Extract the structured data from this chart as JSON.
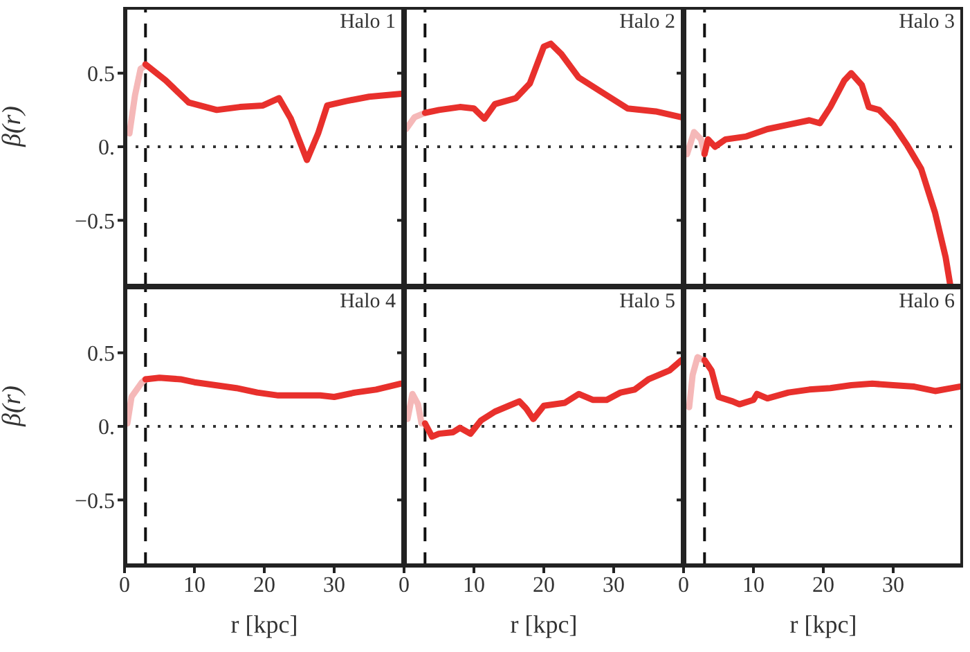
{
  "chart_data": [
    {
      "type": "line",
      "title": "Halo 1",
      "ylabel": "β(r)",
      "xlim": [
        0,
        40
      ],
      "xticks": [
        0,
        10,
        20,
        30
      ],
      "ylim": [
        -0.95,
        0.95
      ],
      "yticks": [
        {
          "value": 0.5,
          "label": "0.5"
        },
        {
          "value": 0,
          "label": "0."
        },
        {
          "value": -0.5,
          "label": "−0.5"
        }
      ],
      "tick_labels": "y",
      "marker": "none",
      "ref_lines": [
        {
          "axis": "x",
          "value": 3,
          "color": "#111111",
          "line_style": "dashed"
        },
        {
          "axis": "y",
          "value": 0,
          "color": "#333333",
          "line_style": "dotted"
        }
      ],
      "series": [
        {
          "color": "#f5b8b8",
          "x": [
            0.7,
            1.5,
            2.3,
            3
          ],
          "values": [
            0.09,
            0.35,
            0.53,
            0.55
          ]
        },
        {
          "color": "#e8302c",
          "x": [
            3,
            5.9,
            9.2,
            13.2,
            16.5,
            19.8,
            22.1,
            23.8,
            26.1,
            27.7,
            29,
            31.7,
            35,
            39.6
          ],
          "values": [
            0.56,
            0.45,
            0.3,
            0.25,
            0.27,
            0.28,
            0.33,
            0.19,
            -0.09,
            0.09,
            0.28,
            0.31,
            0.34,
            0.36
          ]
        }
      ]
    },
    {
      "type": "line",
      "title": "Halo 2",
      "xlim": [
        0,
        40
      ],
      "xticks": [
        0,
        10,
        20,
        30
      ],
      "ylim": [
        -0.95,
        0.95
      ],
      "yticks": [
        0.5,
        0,
        -0.5
      ],
      "tick_labels": false,
      "marker": "none",
      "ref_lines": [
        {
          "axis": "x",
          "value": 3,
          "color": "#111111",
          "line_style": "dashed"
        },
        {
          "axis": "y",
          "value": 0,
          "color": "#333333",
          "line_style": "dotted"
        }
      ],
      "series": [
        {
          "color": "#f5b8b8",
          "x": [
            0.3,
            1.5,
            3
          ],
          "values": [
            0.12,
            0.2,
            0.23
          ]
        },
        {
          "color": "#e8302c",
          "x": [
            3,
            5,
            8,
            10,
            11.5,
            13,
            16,
            18,
            20,
            21,
            22.5,
            25,
            28,
            32,
            36,
            39.7
          ],
          "values": [
            0.23,
            0.25,
            0.27,
            0.26,
            0.19,
            0.29,
            0.33,
            0.43,
            0.68,
            0.7,
            0.63,
            0.47,
            0.38,
            0.26,
            0.24,
            0.2
          ]
        }
      ]
    },
    {
      "type": "line",
      "title": "Halo 3",
      "xlim": [
        0,
        40
      ],
      "xticks": [
        0,
        10,
        20,
        30
      ],
      "ylim": [
        -0.95,
        0.95
      ],
      "yticks": [
        0.5,
        0,
        -0.5
      ],
      "tick_labels": false,
      "marker": "none",
      "ref_lines": [
        {
          "axis": "x",
          "value": 3,
          "color": "#111111",
          "line_style": "dashed"
        },
        {
          "axis": "y",
          "value": 0,
          "color": "#333333",
          "line_style": "dotted"
        }
      ],
      "series": [
        {
          "color": "#f5b8b8",
          "x": [
            0.5,
            1.5,
            2.5,
            3
          ],
          "values": [
            -0.05,
            0.1,
            0.05,
            -0.05
          ]
        },
        {
          "color": "#e8302c",
          "x": [
            3,
            3.5,
            4.5,
            6,
            9,
            12,
            15,
            18,
            19.5,
            21,
            23,
            24,
            25.5,
            26.5,
            28,
            30,
            32,
            34,
            36,
            37.5,
            38.2
          ],
          "values": [
            -0.05,
            0.05,
            0,
            0.05,
            0.07,
            0.12,
            0.15,
            0.18,
            0.16,
            0.27,
            0.45,
            0.5,
            0.42,
            0.27,
            0.25,
            0.15,
            0.01,
            -0.15,
            -0.45,
            -0.75,
            -0.95
          ]
        }
      ]
    },
    {
      "type": "line",
      "title": "Halo 4",
      "xlabel": "r [kpc]",
      "ylabel": "β(r)",
      "xlim": [
        0,
        40
      ],
      "xticks": [
        0,
        10,
        20,
        30
      ],
      "ylim": [
        -0.95,
        0.95
      ],
      "yticks": [
        {
          "value": 0.5,
          "label": "0.5"
        },
        {
          "value": 0,
          "label": "0."
        },
        {
          "value": -0.5,
          "label": "−0.5"
        }
      ],
      "marker": "none",
      "ref_lines": [
        {
          "axis": "x",
          "value": 3,
          "color": "#111111",
          "line_style": "dashed"
        },
        {
          "axis": "y",
          "value": 0,
          "color": "#333333",
          "line_style": "dotted"
        }
      ],
      "series": [
        {
          "color": "#f5b8b8",
          "x": [
            0.4,
            1,
            2.5,
            3
          ],
          "values": [
            0.02,
            0.2,
            0.3,
            0.32
          ]
        },
        {
          "color": "#e8302c",
          "x": [
            3,
            5,
            8,
            10,
            13,
            16,
            19,
            22,
            25,
            28,
            30,
            33,
            36,
            39.5
          ],
          "values": [
            0.32,
            0.33,
            0.32,
            0.3,
            0.28,
            0.26,
            0.23,
            0.21,
            0.21,
            0.21,
            0.2,
            0.23,
            0.25,
            0.29
          ]
        }
      ]
    },
    {
      "type": "line",
      "title": "Halo 5",
      "xlabel": "r [kpc]",
      "xlim": [
        0,
        40
      ],
      "xticks": [
        0,
        10,
        20,
        30
      ],
      "ylim": [
        -0.95,
        0.95
      ],
      "yticks": [
        0.5,
        0,
        -0.5
      ],
      "tick_labels": "x",
      "marker": "none",
      "ref_lines": [
        {
          "axis": "x",
          "value": 3,
          "color": "#111111",
          "line_style": "dashed"
        },
        {
          "axis": "y",
          "value": 0,
          "color": "#333333",
          "line_style": "dotted"
        }
      ],
      "series": [
        {
          "color": "#f5b8b8",
          "x": [
            0.5,
            1.2,
            2,
            2.5,
            3
          ],
          "values": [
            0.05,
            0.22,
            0.15,
            0.02,
            0.02
          ]
        },
        {
          "color": "#e8302c",
          "x": [
            3,
            4,
            5,
            7,
            8,
            9.5,
            11,
            13,
            15,
            16.5,
            17.5,
            18.5,
            20,
            23,
            25,
            27,
            29,
            31,
            33,
            35,
            38,
            39.7
          ],
          "values": [
            0.02,
            -0.07,
            -0.05,
            -0.04,
            -0.01,
            -0.05,
            0.04,
            0.1,
            0.14,
            0.17,
            0.12,
            0.05,
            0.14,
            0.16,
            0.22,
            0.18,
            0.18,
            0.23,
            0.25,
            0.32,
            0.38,
            0.45
          ]
        }
      ]
    },
    {
      "type": "line",
      "title": "Halo 6",
      "xlabel": "r [kpc]",
      "xlim": [
        0,
        40
      ],
      "xticks": [
        0,
        10,
        20,
        30
      ],
      "ylim": [
        -0.95,
        0.95
      ],
      "yticks": [
        0.5,
        0,
        -0.5
      ],
      "tick_labels": "x",
      "marker": "none",
      "ref_lines": [
        {
          "axis": "x",
          "value": 3,
          "color": "#111111",
          "line_style": "dashed"
        },
        {
          "axis": "y",
          "value": 0,
          "color": "#333333",
          "line_style": "dotted"
        }
      ],
      "series": [
        {
          "color": "#f5b8b8",
          "x": [
            0.8,
            1.3,
            2,
            2.8,
            3
          ],
          "values": [
            0.13,
            0.35,
            0.47,
            0.45,
            0.45
          ]
        },
        {
          "color": "#e8302c",
          "x": [
            3,
            4,
            5,
            7,
            8,
            10,
            10.5,
            12,
            15,
            18,
            21,
            24,
            27,
            30,
            33,
            36,
            39.5
          ],
          "values": [
            0.45,
            0.38,
            0.2,
            0.17,
            0.15,
            0.18,
            0.22,
            0.19,
            0.23,
            0.25,
            0.26,
            0.28,
            0.29,
            0.28,
            0.27,
            0.24,
            0.27
          ]
        }
      ]
    }
  ]
}
